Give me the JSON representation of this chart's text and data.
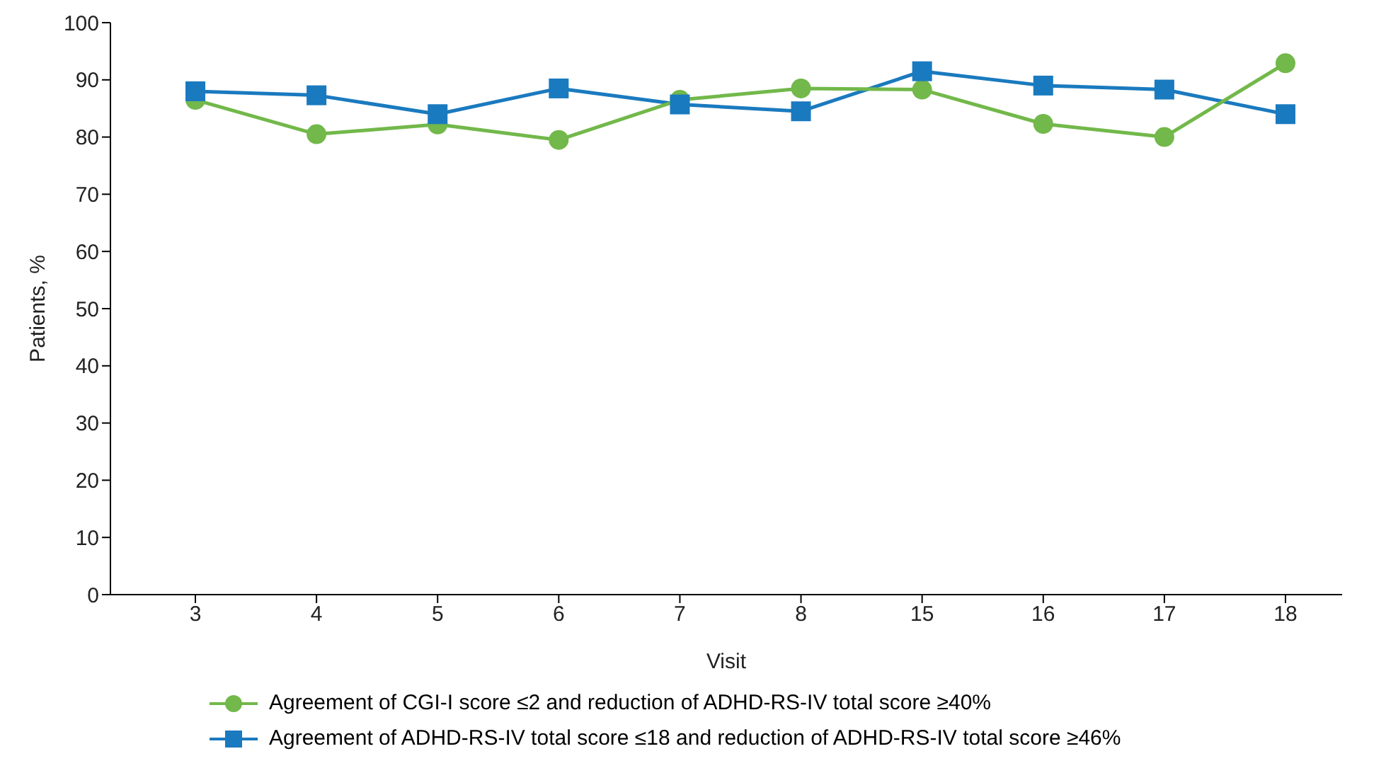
{
  "chart_data": {
    "type": "line",
    "xlabel": "Visit",
    "ylabel": "Patients, %",
    "categories": [
      "3",
      "4",
      "5",
      "6",
      "7",
      "8",
      "15",
      "16",
      "17",
      "18"
    ],
    "ylim": [
      0,
      100
    ],
    "yticks": [
      0,
      10,
      20,
      30,
      40,
      50,
      60,
      70,
      80,
      90,
      100
    ],
    "grid": false,
    "legend": "bottom",
    "line_style": "solid",
    "series": [
      {
        "name": "Agreement of CGI-I score ≤2 and reduction of ADHD-RS-IV total score ≥40%",
        "color": "#72b84a",
        "marker": "circle",
        "values": [
          86.5,
          80.5,
          82.2,
          79.5,
          86.5,
          88.5,
          88.3,
          82.3,
          80,
          92.9
        ]
      },
      {
        "name": "Agreement of ADHD-RS-IV total score ≤18 and reduction of ADHD-RS-IV total score ≥46%",
        "color": "#1a7abf",
        "marker": "square",
        "values": [
          88,
          87.3,
          84,
          88.5,
          85.7,
          84.5,
          91.5,
          89,
          88.3,
          84
        ]
      }
    ]
  }
}
